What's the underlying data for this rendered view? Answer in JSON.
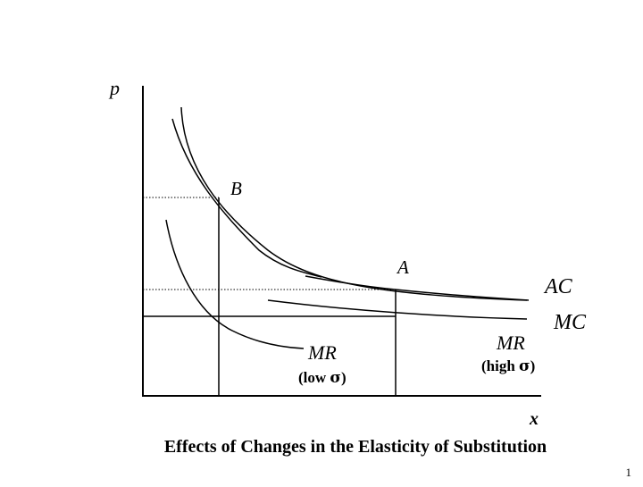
{
  "diagram": {
    "title": "Effects of Changes in the Elasticity of Substitution",
    "y_axis_label": "p",
    "x_axis_label": "x",
    "point_b": "B",
    "point_a": "A",
    "ac_label": "AC",
    "mc_label": "MC",
    "mr_low": {
      "label": "MR",
      "sub_prefix": "(low ",
      "sigma": "σ",
      "sub_suffix": ")"
    },
    "mr_high": {
      "label": "MR",
      "sub_prefix": "(high ",
      "sigma": "σ",
      "sub_suffix": ")"
    }
  },
  "slide_number": "1"
}
